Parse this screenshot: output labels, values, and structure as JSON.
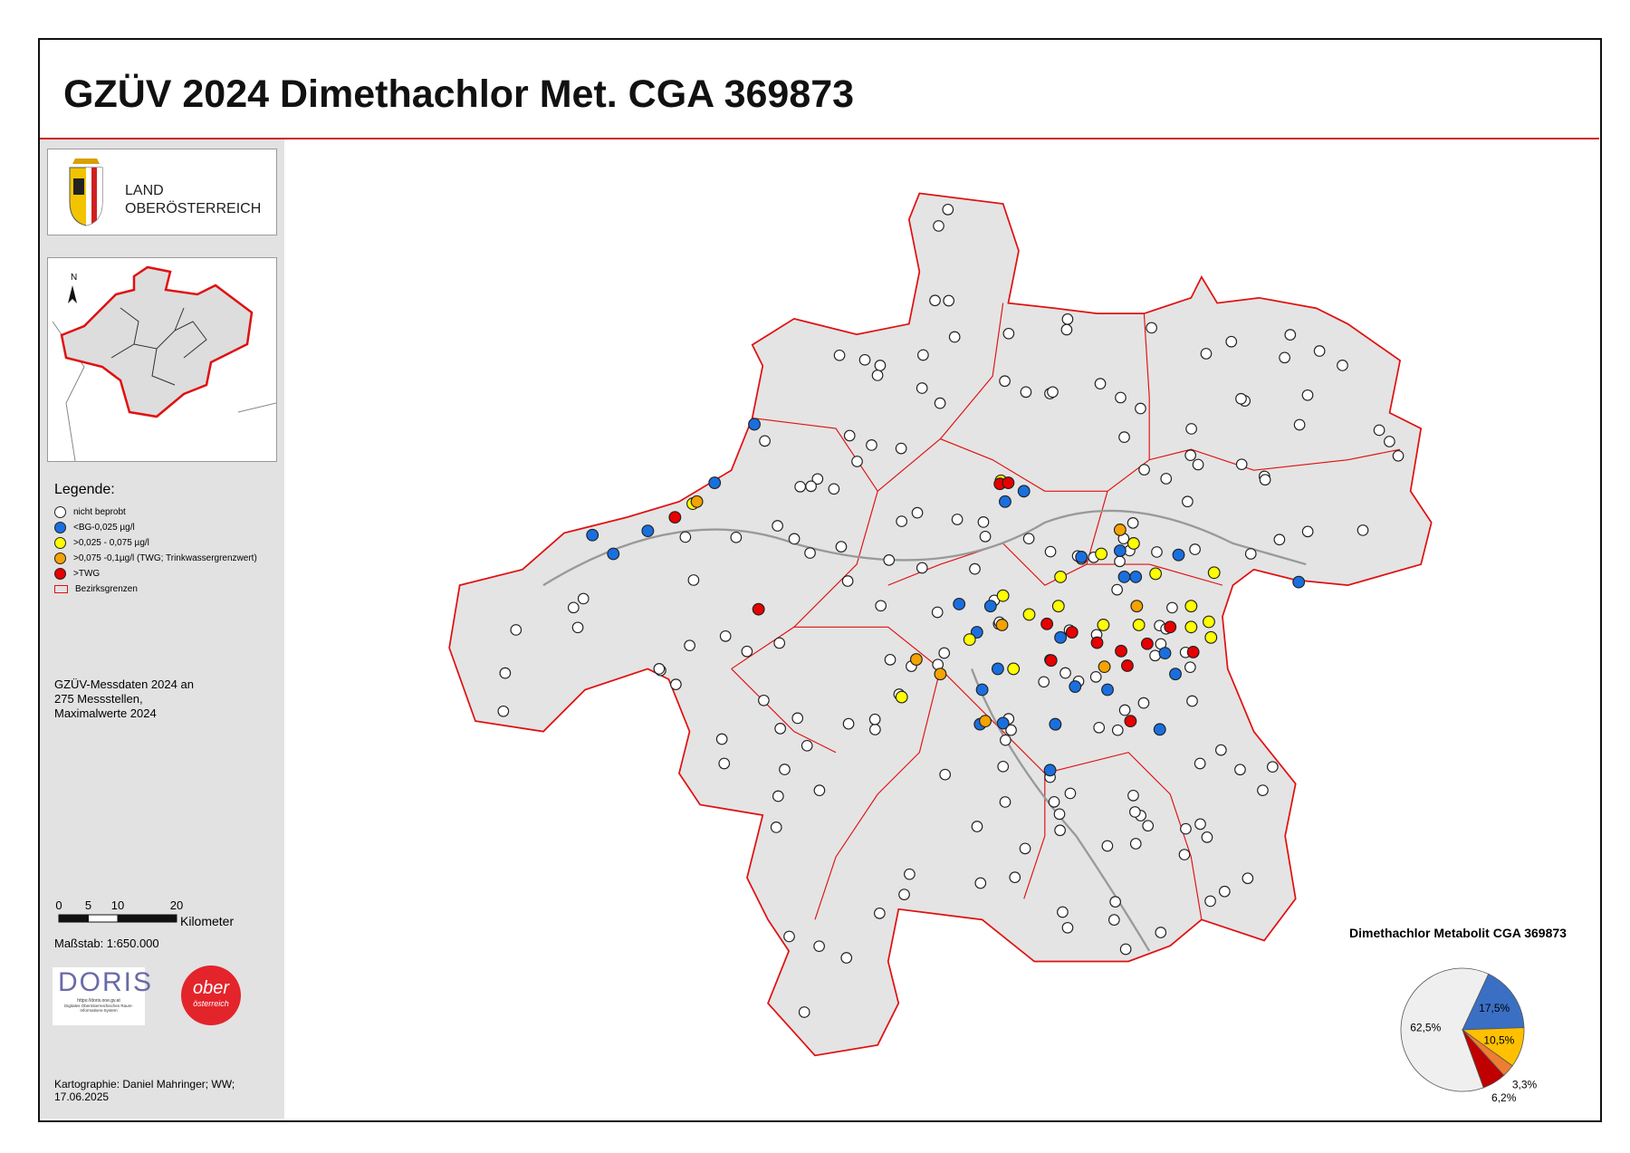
{
  "header": {
    "title": "GZÜV 2024 Dimethachlor Met. CGA 369873"
  },
  "logo": {
    "line1": "LAND",
    "line2": "OBERÖSTERREICH"
  },
  "inset": {
    "north": "N"
  },
  "legend": {
    "title": "Legende:",
    "items": [
      {
        "label": "nicht beprobt",
        "color": "#ffffff"
      },
      {
        "label": "<BG-0,025 µg/l",
        "color": "#1a6fdf"
      },
      {
        "label": ">0,025 - 0,075 µg/l",
        "color": "#ffff00"
      },
      {
        "label": ">0,075 -0,1µg/l (TWG; Trinkwassergrenzwert)",
        "color": "#f5a300"
      },
      {
        "label": ">TWG",
        "color": "#e60000"
      },
      {
        "label": "Bezirksgrenzen",
        "color": "#e01010"
      }
    ]
  },
  "info": {
    "lines": [
      "GZÜV-Messdaten 2024 an",
      "275 Messstellen,",
      "Maximalwerte 2024"
    ]
  },
  "scalebar": {
    "ticks": [
      0,
      5,
      10,
      20
    ],
    "unit": "Kilometer",
    "scale": "Maßstab: 1:650.000"
  },
  "doris": {
    "name": "DORIS",
    "url": "https://doris.ooe.gv.at",
    "subtitle": "Digitales Oberösterreichisches Raum-Informations-System"
  },
  "ober": {
    "line1": "ober",
    "line2": "österreich"
  },
  "credits": {
    "lines": [
      "Kartographie: Daniel Mahringer; WW;",
      "17.06.2025"
    ]
  },
  "chart_data": {
    "type": "pie",
    "title": "Dimethachlor Metabolit CGA 369873",
    "values": [
      62.5,
      17.5,
      10.5,
      3.3,
      6.2
    ],
    "value_labels": [
      "62,5%",
      "17,5%",
      "10,5%",
      "3,3%",
      "6,2%"
    ],
    "colors": [
      "#efefef",
      "#3a6fc4",
      "#ffc000",
      "#ed7d31",
      "#c00000"
    ]
  }
}
